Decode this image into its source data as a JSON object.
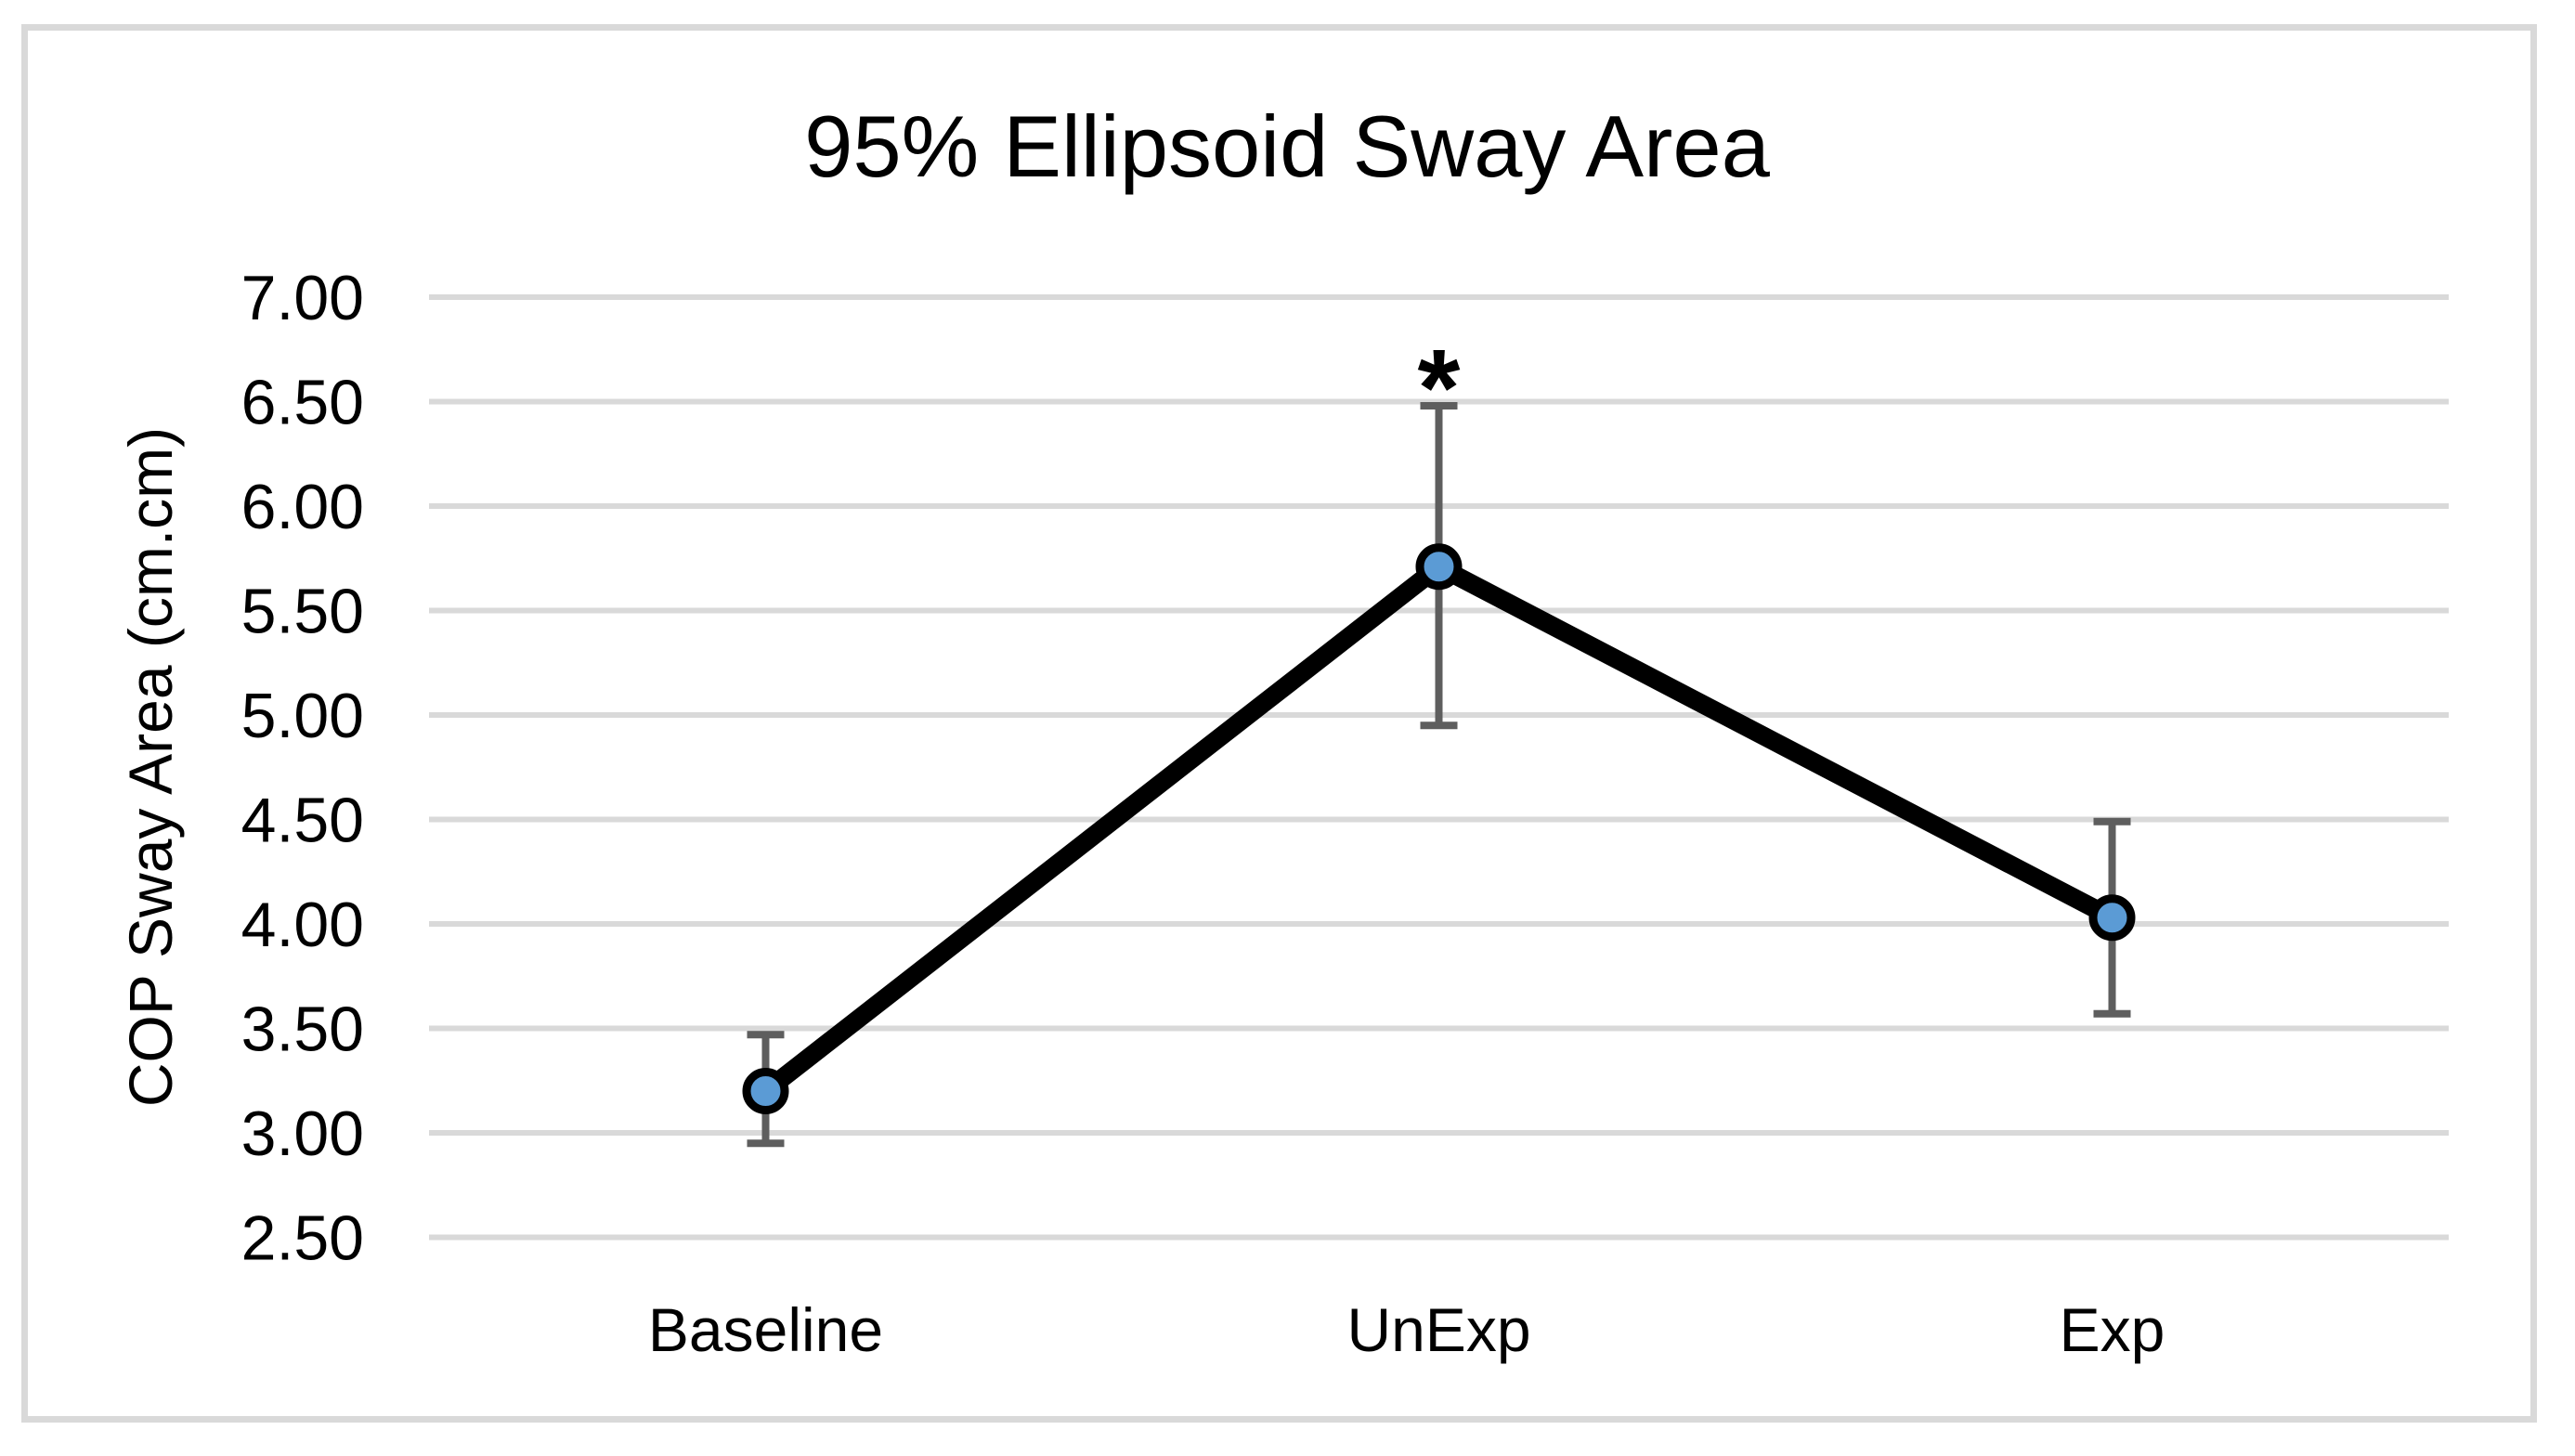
{
  "chart_data": {
    "type": "line",
    "title": "95% Ellipsoid Sway Area",
    "ylabel": "COP Sway Area (cm.cm)",
    "xlabel": "",
    "categories": [
      "Baseline",
      "UnExp",
      "Exp"
    ],
    "series": [
      {
        "name": "COP Sway Area",
        "values": [
          3.2,
          5.71,
          4.03
        ],
        "error_high": [
          3.47,
          6.48,
          4.49
        ],
        "error_low": [
          2.95,
          4.95,
          3.57
        ]
      }
    ],
    "annotation": {
      "text": "*",
      "category_index": 1
    },
    "ylim": [
      2.5,
      7.0
    ],
    "ytick_step": 0.5,
    "ytick_labels": [
      "7.00",
      "6.50",
      "6.00",
      "5.50",
      "5.00",
      "4.50",
      "4.00",
      "3.50",
      "3.00",
      "2.50"
    ],
    "grid": true,
    "legend": false,
    "colors": {
      "marker_fill": "#5B9BD5",
      "line": "#000000",
      "error_bar": "#5E5E5E",
      "gridline": "#D9D9D9",
      "border": "#D9D9D9",
      "text": "#000000"
    }
  }
}
